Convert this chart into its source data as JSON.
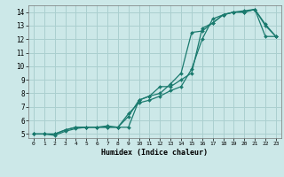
{
  "xlabel": "Humidex (Indice chaleur)",
  "bg_color": "#cce8e8",
  "grid_color": "#aacfcf",
  "line_color": "#1a7a6e",
  "xlim": [
    -0.5,
    23.5
  ],
  "ylim": [
    4.7,
    14.5
  ],
  "xticks": [
    0,
    1,
    2,
    3,
    4,
    5,
    6,
    7,
    8,
    9,
    10,
    11,
    12,
    13,
    14,
    15,
    16,
    17,
    18,
    19,
    20,
    21,
    22,
    23
  ],
  "yticks": [
    5,
    6,
    7,
    8,
    9,
    10,
    11,
    12,
    13,
    14
  ],
  "line1_x": [
    0,
    1,
    2,
    3,
    4,
    5,
    6,
    7,
    8,
    9,
    10,
    11,
    12,
    13,
    14,
    15,
    16,
    17,
    18,
    19,
    20,
    21,
    22,
    23
  ],
  "line1_y": [
    5.0,
    5.0,
    5.0,
    5.3,
    5.5,
    5.5,
    5.5,
    5.5,
    5.5,
    5.5,
    7.5,
    7.8,
    8.0,
    8.7,
    9.5,
    12.5,
    12.6,
    13.2,
    13.8,
    14.0,
    14.0,
    14.2,
    13.0,
    12.2
  ],
  "line2_x": [
    0,
    1,
    2,
    3,
    4,
    5,
    6,
    7,
    8,
    9,
    10,
    11,
    12,
    13,
    14,
    15,
    16,
    17,
    18,
    19,
    20,
    21,
    22,
    23
  ],
  "line2_y": [
    5.0,
    5.0,
    4.9,
    5.2,
    5.4,
    5.5,
    5.5,
    5.6,
    5.5,
    6.5,
    7.3,
    7.5,
    7.8,
    8.2,
    8.5,
    9.8,
    12.0,
    13.5,
    13.8,
    14.0,
    14.1,
    14.2,
    12.2,
    12.2
  ],
  "line3_x": [
    0,
    1,
    2,
    3,
    4,
    5,
    6,
    7,
    8,
    9,
    10,
    11,
    12,
    13,
    14,
    15,
    16,
    17,
    18,
    19,
    20,
    21,
    22,
    23
  ],
  "line3_y": [
    5.0,
    5.0,
    5.0,
    5.3,
    5.5,
    5.5,
    5.5,
    5.5,
    5.5,
    6.3,
    7.5,
    7.8,
    8.5,
    8.5,
    9.0,
    9.5,
    12.8,
    13.2,
    13.8,
    14.0,
    14.0,
    14.2,
    13.1,
    12.2
  ]
}
